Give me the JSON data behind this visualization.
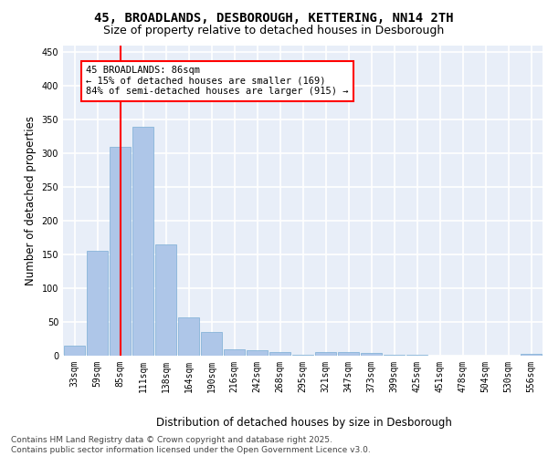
{
  "title_line1": "45, BROADLANDS, DESBOROUGH, KETTERING, NN14 2TH",
  "title_line2": "Size of property relative to detached houses in Desborough",
  "xlabel": "Distribution of detached houses by size in Desborough",
  "ylabel": "Number of detached properties",
  "categories": [
    "33sqm",
    "59sqm",
    "85sqm",
    "111sqm",
    "138sqm",
    "164sqm",
    "190sqm",
    "216sqm",
    "242sqm",
    "268sqm",
    "295sqm",
    "321sqm",
    "347sqm",
    "373sqm",
    "399sqm",
    "425sqm",
    "451sqm",
    "478sqm",
    "504sqm",
    "530sqm",
    "556sqm"
  ],
  "values": [
    15,
    155,
    310,
    340,
    165,
    57,
    35,
    10,
    8,
    6,
    2,
    5,
    5,
    4,
    2,
    1,
    0,
    0,
    0,
    0,
    3
  ],
  "bar_color": "#aec6e8",
  "bar_edge_color": "#7aadd4",
  "annotation_text_line1": "45 BROADLANDS: 86sqm",
  "annotation_text_line2": "← 15% of detached houses are smaller (169)",
  "annotation_text_line3": "84% of semi-detached houses are larger (915) →",
  "annotation_box_color": "white",
  "annotation_box_edge_color": "red",
  "vline_color": "red",
  "vline_x_index": 2,
  "ylim": [
    0,
    460
  ],
  "yticks": [
    0,
    50,
    100,
    150,
    200,
    250,
    300,
    350,
    400,
    450
  ],
  "background_color": "#e8eef8",
  "grid_color": "white",
  "footer_line1": "Contains HM Land Registry data © Crown copyright and database right 2025.",
  "footer_line2": "Contains public sector information licensed under the Open Government Licence v3.0.",
  "title_fontsize": 10,
  "subtitle_fontsize": 9,
  "axis_label_fontsize": 8.5,
  "tick_fontsize": 7,
  "annotation_fontsize": 7.5,
  "footer_fontsize": 6.5
}
